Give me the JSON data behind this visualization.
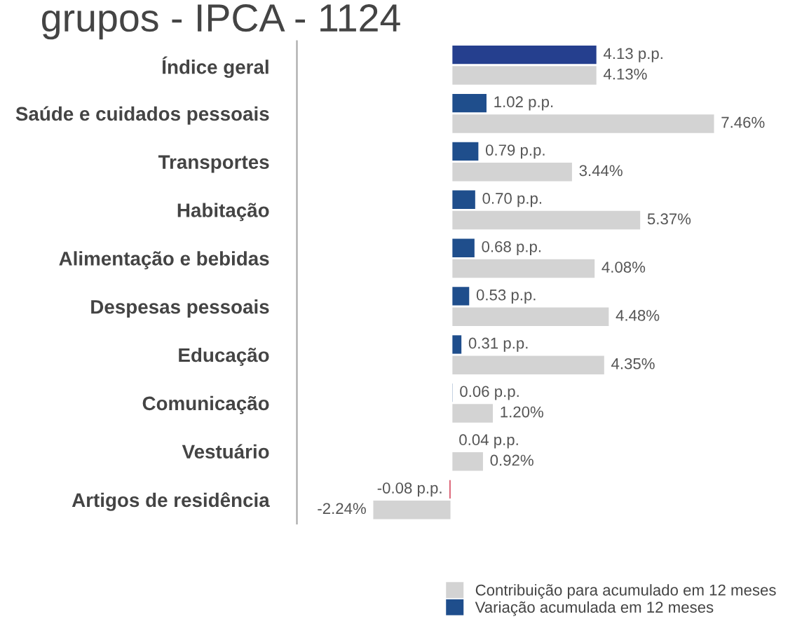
{
  "chart_data": {
    "type": "bar",
    "orientation": "horizontal",
    "title": "grupos - IPCA - 1124",
    "categories": [
      "Índice geral",
      "Saúde e cuidados pessoais",
      "Transportes",
      "Habitação",
      "Alimentação e bebidas",
      "Despesas pessoais",
      "Educação",
      "Comunicação",
      "Vestuário",
      "Artigos de residência"
    ],
    "series": [
      {
        "name": "Variação acumulada em 12 meses",
        "color": "#1f4e8c",
        "colors": [
          "#253f8e",
          "#1f4e8c",
          "#1f4e8c",
          "#1f4e8c",
          "#1f4e8c",
          "#1f4e8c",
          "#1f4e8c",
          "#1f4e8c",
          "#1f4e8c",
          "#c8102e"
        ],
        "values": [
          4.13,
          1.02,
          0.79,
          0.7,
          0.68,
          0.53,
          0.31,
          0.06,
          0.04,
          -0.08
        ],
        "value_labels": [
          "4.13 p.p.",
          "1.02 p.p.",
          "0.79 p.p.",
          "0.70 p.p.",
          "0.68 p.p.",
          "0.53 p.p.",
          "0.31 p.p.",
          "0.06 p.p.",
          "0.04 p.p.",
          "-0.08 p.p."
        ]
      },
      {
        "name": "Contribuição para acumulado em 12 meses",
        "color": "#d3d3d3",
        "values": [
          4.13,
          7.46,
          3.44,
          5.37,
          4.08,
          4.48,
          4.35,
          1.2,
          0.92,
          -2.24
        ],
        "value_labels": [
          "4.13%",
          "7.46%",
          "3.44%",
          "5.37%",
          "4.08%",
          "4.48%",
          "4.35%",
          "1.20%",
          "0.92%",
          "-2.24%"
        ]
      }
    ],
    "legend": "bottom right",
    "grid": false
  }
}
